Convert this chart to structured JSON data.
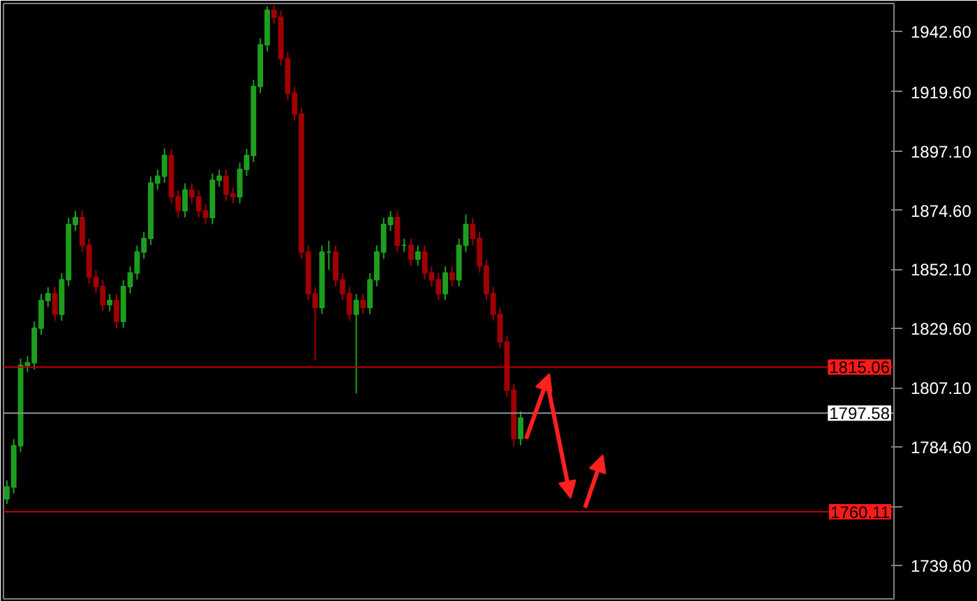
{
  "chart_data": {
    "type": "candlestick",
    "categories": [
      null,
      null,
      null,
      null,
      null,
      null,
      null,
      null,
      null,
      null,
      null,
      null,
      null,
      null,
      null,
      null,
      null,
      null,
      null,
      null,
      null,
      null,
      null,
      null,
      null,
      null,
      null,
      null,
      null,
      null,
      null,
      null,
      null,
      null,
      null,
      null,
      null,
      null,
      null,
      null,
      null,
      null,
      null,
      null,
      null,
      null,
      null,
      null,
      null,
      null,
      null,
      null,
      null,
      null,
      null,
      null,
      null,
      null,
      null,
      null,
      null,
      null,
      null,
      null,
      null,
      null,
      null,
      null,
      null,
      null,
      null,
      null,
      null,
      null,
      null,
      null,
      null,
      null,
      null,
      null,
      null,
      null,
      null,
      null,
      null,
      null,
      null,
      null,
      null,
      null,
      null,
      null,
      null,
      null,
      null,
      null,
      null,
      null,
      null,
      null,
      null,
      null,
      null,
      null,
      null,
      null,
      null,
      null,
      null,
      null,
      null,
      null,
      null,
      null,
      null,
      null,
      null,
      null,
      null,
      null,
      null,
      null,
      null,
      null,
      null,
      null,
      null,
      null,
      null,
      null
    ],
    "ohlc": [
      [
        1765.0,
        1772.0,
        1763.0,
        1769.5
      ],
      [
        1769.5,
        1787.7,
        1767.0,
        1785.2
      ],
      [
        1785.2,
        1818.2,
        1782.7,
        1815.7
      ],
      [
        1815.7,
        1819.2,
        1813.2,
        1816.7
      ],
      [
        1816.7,
        1832.3,
        1814.2,
        1829.8
      ],
      [
        1829.8,
        1842.8,
        1827.3,
        1840.3
      ],
      [
        1840.3,
        1845.4,
        1837.8,
        1842.9
      ],
      [
        1842.9,
        1845.4,
        1832.6,
        1835.1
      ],
      [
        1835.1,
        1850.7,
        1832.6,
        1848.2
      ],
      [
        1848.2,
        1871.7,
        1845.7,
        1869.2
      ],
      [
        1869.2,
        1874.3,
        1866.7,
        1871.8
      ],
      [
        1871.8,
        1874.3,
        1858.8,
        1861.3
      ],
      [
        1861.3,
        1863.8,
        1846.7,
        1849.2
      ],
      [
        1849.2,
        1851.7,
        1843.1,
        1845.6
      ],
      [
        1845.6,
        1848.1,
        1836.2,
        1838.7
      ],
      [
        1838.7,
        1842.8,
        1836.2,
        1840.3
      ],
      [
        1840.3,
        1842.8,
        1829.9,
        1832.4
      ],
      [
        1832.4,
        1848.1,
        1829.9,
        1845.6
      ],
      [
        1845.6,
        1853.3,
        1843.1,
        1850.8
      ],
      [
        1850.8,
        1861.2,
        1848.3,
        1858.7
      ],
      [
        1858.7,
        1866.4,
        1856.2,
        1863.9
      ],
      [
        1863.9,
        1887.4,
        1861.4,
        1884.9
      ],
      [
        1884.9,
        1890.0,
        1882.4,
        1887.5
      ],
      [
        1887.5,
        1898.0,
        1885.0,
        1895.4
      ],
      [
        1895.4,
        1897.9,
        1877.2,
        1879.7
      ],
      [
        1879.7,
        1882.2,
        1871.9,
        1874.4
      ],
      [
        1874.4,
        1884.8,
        1871.9,
        1882.3
      ],
      [
        1882.3,
        1884.8,
        1877.2,
        1879.7
      ],
      [
        1879.7,
        1882.2,
        1871.9,
        1874.4
      ],
      [
        1874.4,
        1876.9,
        1869.3,
        1871.8
      ],
      [
        1871.8,
        1888.5,
        1869.3,
        1886.0
      ],
      [
        1886.0,
        1890.0,
        1883.5,
        1887.5
      ],
      [
        1887.5,
        1890.0,
        1878.2,
        1880.7
      ],
      [
        1880.7,
        1883.2,
        1877.2,
        1879.7
      ],
      [
        1879.7,
        1892.6,
        1877.2,
        1890.1
      ],
      [
        1890.1,
        1897.9,
        1887.6,
        1895.4
      ],
      [
        1895.4,
        1924.1,
        1892.9,
        1921.6
      ],
      [
        1921.6,
        1939.9,
        1919.1,
        1937.4
      ],
      [
        1937.4,
        1952.0,
        1934.9,
        1950.5
      ],
      [
        1950.5,
        1952.5,
        1945.4,
        1947.9
      ],
      [
        1947.9,
        1950.4,
        1929.6,
        1932.1
      ],
      [
        1932.1,
        1934.6,
        1916.5,
        1919.0
      ],
      [
        1919.0,
        1921.5,
        1908.6,
        1911.1
      ],
      [
        1911.1,
        1913.6,
        1856.2,
        1858.7
      ],
      [
        1858.7,
        1861.2,
        1840.4,
        1842.9
      ],
      [
        1842.9,
        1845.4,
        1817.7,
        1837.7
      ],
      [
        1837.7,
        1861.2,
        1835.2,
        1858.7
      ],
      [
        1858.7,
        1863.0,
        1852.0,
        1858.7
      ],
      [
        1858.7,
        1861.2,
        1845.7,
        1848.2
      ],
      [
        1848.2,
        1850.7,
        1840.4,
        1842.9
      ],
      [
        1842.9,
        1845.4,
        1832.6,
        1835.1
      ],
      [
        1835.1,
        1842.8,
        1805.0,
        1840.3
      ],
      [
        1840.3,
        1842.8,
        1835.2,
        1837.7
      ],
      [
        1837.7,
        1850.7,
        1835.2,
        1848.2
      ],
      [
        1848.2,
        1861.2,
        1845.7,
        1858.7
      ],
      [
        1858.7,
        1871.7,
        1856.2,
        1869.2
      ],
      [
        1869.2,
        1874.3,
        1866.7,
        1871.8
      ],
      [
        1871.8,
        1874.3,
        1858.8,
        1861.3
      ],
      [
        1861.3,
        1863.8,
        1858.8,
        1861.3
      ],
      [
        1861.3,
        1863.8,
        1853.5,
        1856.0
      ],
      [
        1856.0,
        1861.2,
        1853.5,
        1858.7
      ],
      [
        1858.7,
        1861.2,
        1848.3,
        1850.8
      ],
      [
        1850.8,
        1853.3,
        1845.7,
        1848.2
      ],
      [
        1848.2,
        1850.7,
        1840.4,
        1842.9
      ],
      [
        1842.9,
        1853.3,
        1840.4,
        1850.8
      ],
      [
        1850.8,
        1853.3,
        1845.7,
        1848.2
      ],
      [
        1848.2,
        1863.8,
        1845.7,
        1861.3
      ],
      [
        1861.3,
        1873.0,
        1858.8,
        1869.2
      ],
      [
        1869.2,
        1871.7,
        1861.4,
        1863.9
      ],
      [
        1863.9,
        1866.4,
        1850.9,
        1853.4
      ],
      [
        1853.4,
        1855.9,
        1840.4,
        1842.9
      ],
      [
        1842.9,
        1845.4,
        1832.6,
        1835.1
      ],
      [
        1835.1,
        1837.6,
        1822.1,
        1824.6
      ],
      [
        1824.6,
        1827.1,
        1803.7,
        1806.2
      ],
      [
        1806.2,
        1808.7,
        1785.0,
        1787.9
      ],
      [
        1787.9,
        1798.2,
        1785.4,
        1795.7
      ],
      null,
      null,
      null,
      null,
      null,
      null,
      null,
      null,
      null,
      null,
      null,
      null,
      null,
      null,
      null,
      null,
      null,
      null,
      null,
      null,
      null,
      null,
      null,
      null,
      null,
      null,
      null,
      null,
      null,
      null,
      null,
      null,
      null,
      null,
      null,
      null,
      null,
      null,
      null,
      null,
      null,
      null,
      null,
      null,
      null,
      null,
      null,
      null,
      null,
      null,
      null,
      null,
      null,
      null
    ],
    "colors": [
      "#1e9e1e",
      "#1e9e1e",
      "#1e9e1e",
      "#1e9e1e",
      "#1e9e1e",
      "#1e9e1e",
      "#1e9e1e",
      "#a00000",
      "#1e9e1e",
      "#1e9e1e",
      "#1e9e1e",
      "#a00000",
      "#a00000",
      "#a00000",
      "#a00000",
      "#1e9e1e",
      "#a00000",
      "#1e9e1e",
      "#1e9e1e",
      "#1e9e1e",
      "#1e9e1e",
      "#1e9e1e",
      "#1e9e1e",
      "#1e9e1e",
      "#a00000",
      "#a00000",
      "#1e9e1e",
      "#a00000",
      "#a00000",
      "#a00000",
      "#1e9e1e",
      "#1e9e1e",
      "#a00000",
      "#a00000",
      "#1e9e1e",
      "#1e9e1e",
      "#1e9e1e",
      "#1e9e1e",
      "#1e9e1e",
      "#a00000",
      "#a00000",
      "#a00000",
      "#a00000",
      "#a00000",
      "#a00000",
      "#a00000",
      "#1e9e1e",
      "#1e9e1e",
      "#a00000",
      "#a00000",
      "#a00000",
      "#1e9e1e",
      "#a00000",
      "#1e9e1e",
      "#1e9e1e",
      "#1e9e1e",
      "#1e9e1e",
      "#a00000",
      "#1e9e1e",
      "#a00000",
      "#1e9e1e",
      "#a00000",
      "#a00000",
      "#a00000",
      "#1e9e1e",
      "#a00000",
      "#1e9e1e",
      "#1e9e1e",
      "#a00000",
      "#a00000",
      "#a00000",
      "#a00000",
      "#a00000",
      "#a00000",
      "#a00000",
      "#1e9e1e",
      null,
      null,
      null,
      null,
      null,
      null,
      null,
      null,
      null,
      null,
      null,
      null,
      null,
      null,
      null,
      null,
      null,
      null,
      null,
      null,
      null,
      null,
      null,
      null,
      null,
      null,
      null,
      null,
      null,
      null,
      null,
      null,
      null,
      null,
      null,
      null,
      null,
      null,
      null,
      null,
      null,
      null,
      null,
      null,
      null,
      null,
      null,
      null,
      null,
      null,
      null,
      null,
      null,
      null
    ],
    "ylim": [
      1727.0,
      1953.1
    ],
    "yticks": [
      {
        "value": 1942.6,
        "label": "1942.60"
      },
      {
        "value": 1919.6,
        "label": "1919.60"
      },
      {
        "value": 1897.1,
        "label": "1897.10"
      },
      {
        "value": 1874.6,
        "label": "1874.60"
      },
      {
        "value": 1852.1,
        "label": "1852.10"
      },
      {
        "value": 1829.6,
        "label": "1829.60"
      },
      {
        "value": 1807.1,
        "label": "1807.10"
      },
      {
        "value": 1784.6,
        "label": "1784.60"
      },
      {
        "value": 1762.1,
        "label": null
      },
      {
        "value": 1739.6,
        "label": "1739.60"
      }
    ],
    "tick_labels": "y",
    "grid": false,
    "ref_lines": [
      {
        "axis": "y",
        "value": 1815.06,
        "label": "1815.06",
        "color": "#c00000"
      },
      {
        "axis": "y",
        "value": 1797.58,
        "label": "1797.58",
        "color": "#8c96a0"
      },
      {
        "axis": "y",
        "value": 1760.11,
        "label": "1760.11",
        "color": "#c00000"
      }
    ]
  }
}
